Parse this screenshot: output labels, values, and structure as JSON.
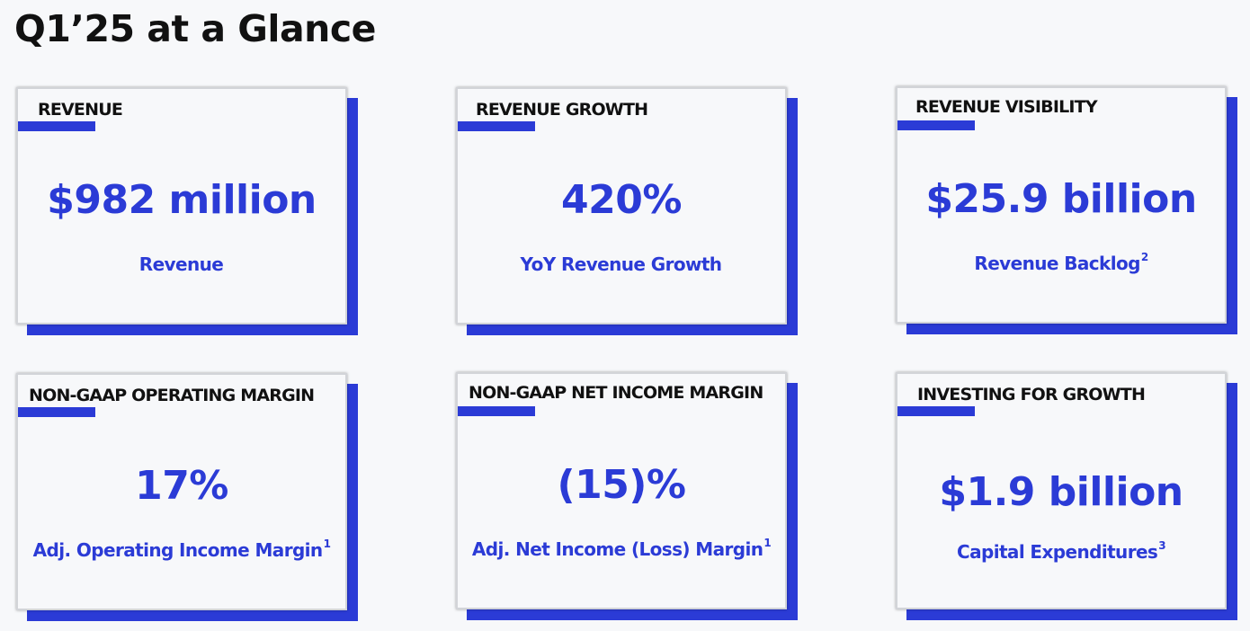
{
  "title": "Q1’25 at a Glance",
  "cards": [
    {
      "label": "REVENUE",
      "value": "$982 million",
      "sub": "Revenue",
      "sup": ""
    },
    {
      "label": "REVENUE GROWTH",
      "value": "420%",
      "sub": "YoY Revenue Growth",
      "sup": ""
    },
    {
      "label": "REVENUE VISIBILITY",
      "value": "$25.9 billion",
      "sub": "Revenue Backlog",
      "sup": "2"
    },
    {
      "label": "NON-GAAP OPERATING MARGIN",
      "value": "17%",
      "sub": "Adj. Operating Income Margin",
      "sup": "1"
    },
    {
      "label": "NON-GAAP NET INCOME MARGIN",
      "value": "(15)%",
      "sub": "Adj. Net Income (Loss) Margin",
      "sup": "1"
    },
    {
      "label": "INVESTING FOR GROWTH",
      "value": "$1.9 billion",
      "sub": "Capital Expenditures",
      "sup": "3"
    }
  ],
  "colors": {
    "accent": "#2b3bd6",
    "text": "#111111",
    "background": "#f7f8fa"
  }
}
